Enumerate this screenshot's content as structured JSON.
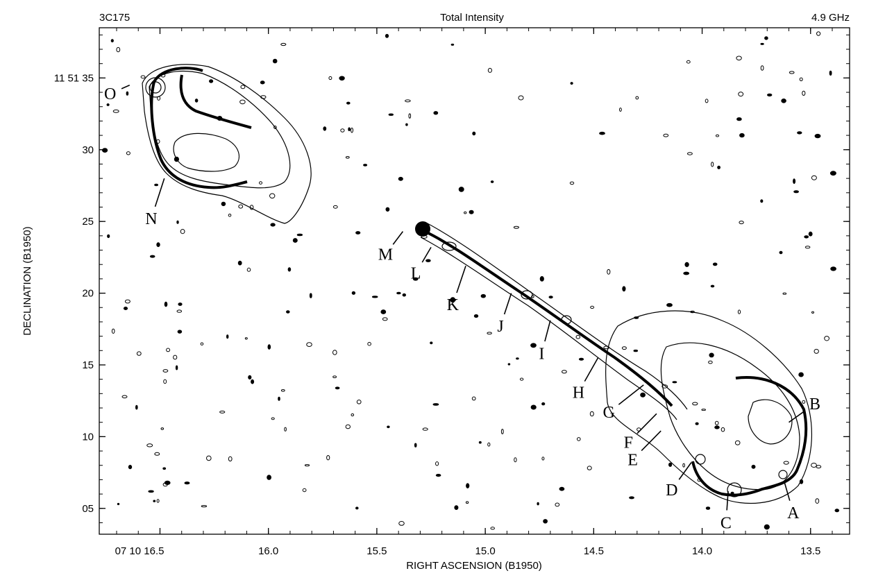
{
  "chart_data": {
    "type": "contour",
    "source": "3C175",
    "title": "Total Intensity",
    "frequency": "4.9 GHz",
    "xlabel": "RIGHT ASCENSION (B1950)",
    "ylabel": "DECLINATION (B1950)",
    "x_ticks": [
      {
        "value": 16.5,
        "label": "07 10 16.5"
      },
      {
        "value": 16.0,
        "label": "16.0"
      },
      {
        "value": 15.5,
        "label": "15.5"
      },
      {
        "value": 15.0,
        "label": "15.0"
      },
      {
        "value": 14.5,
        "label": "14.5"
      },
      {
        "value": 14.0,
        "label": "14.0"
      },
      {
        "value": 13.5,
        "label": "13.5"
      }
    ],
    "y_ticks": [
      {
        "value": 35,
        "label": "11 51 35"
      },
      {
        "value": 30,
        "label": "30"
      },
      {
        "value": 25,
        "label": "25"
      },
      {
        "value": 20,
        "label": "20"
      },
      {
        "value": 15,
        "label": "15"
      },
      {
        "value": 10,
        "label": "10"
      },
      {
        "value": 5,
        "label": "05"
      }
    ],
    "xlim": [
      16.78,
      13.32
    ],
    "ylim": [
      3.2,
      38.5
    ],
    "features": [
      {
        "label": "A",
        "x": 13.62,
        "y": 6.8,
        "lx": 13.58,
        "ly": 4.7
      },
      {
        "label": "B",
        "x": 13.6,
        "y": 11.0,
        "lx": 13.48,
        "ly": 12.3
      },
      {
        "label": "C",
        "x": 13.88,
        "y": 6.2,
        "lx": 13.89,
        "ly": 4.0
      },
      {
        "label": "D",
        "x": 14.05,
        "y": 8.2,
        "lx": 14.14,
        "ly": 6.3
      },
      {
        "label": "E",
        "x": 14.19,
        "y": 10.4,
        "lx": 14.32,
        "ly": 8.4
      },
      {
        "label": "F",
        "x": 14.21,
        "y": 11.6,
        "lx": 14.34,
        "ly": 9.6
      },
      {
        "label": "G",
        "x": 14.27,
        "y": 13.6,
        "lx": 14.43,
        "ly": 11.7
      },
      {
        "label": "H",
        "x": 14.48,
        "y": 15.5,
        "lx": 14.57,
        "ly": 13.1
      },
      {
        "label": "I",
        "x": 14.7,
        "y": 18.1,
        "lx": 14.74,
        "ly": 15.8
      },
      {
        "label": "J",
        "x": 14.88,
        "y": 20.0,
        "lx": 14.93,
        "ly": 17.7
      },
      {
        "label": "K",
        "x": 15.09,
        "y": 21.9,
        "lx": 15.15,
        "ly": 19.2
      },
      {
        "label": "L",
        "x": 15.25,
        "y": 23.2,
        "lx": 15.32,
        "ly": 21.4
      },
      {
        "label": "M",
        "x": 15.38,
        "y": 24.3,
        "lx": 15.46,
        "ly": 22.7
      },
      {
        "label": "N",
        "x": 16.48,
        "y": 28.0,
        "lx": 16.54,
        "ly": 25.2
      },
      {
        "label": "O",
        "x": 16.64,
        "y": 34.5,
        "lx": 16.73,
        "ly": 33.9
      }
    ],
    "grid": false,
    "legend": "none"
  }
}
